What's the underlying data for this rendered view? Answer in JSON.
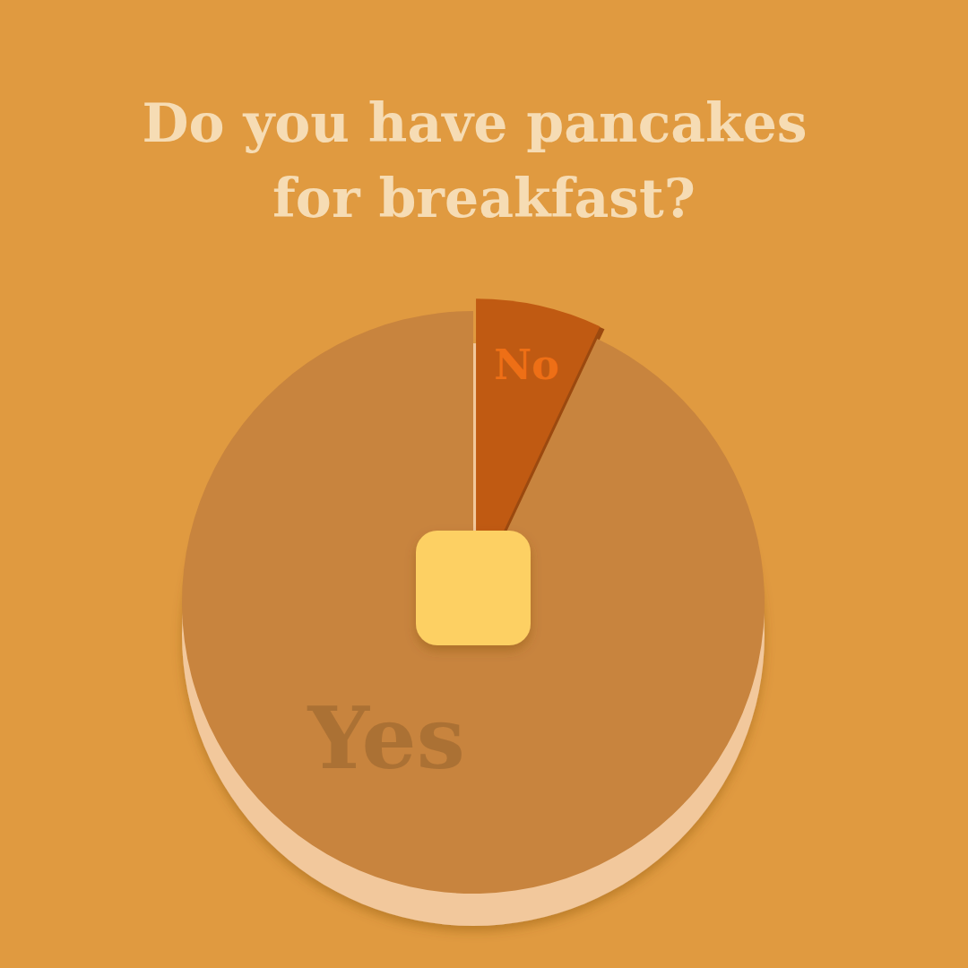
{
  "chart_data": {
    "type": "pie",
    "title": "Do you have pancakes for breakfast?",
    "categories": [
      "No",
      "Yes"
    ],
    "values": [
      7,
      93
    ],
    "colors": [
      "#c05a12",
      "#c8843e"
    ]
  }
}
